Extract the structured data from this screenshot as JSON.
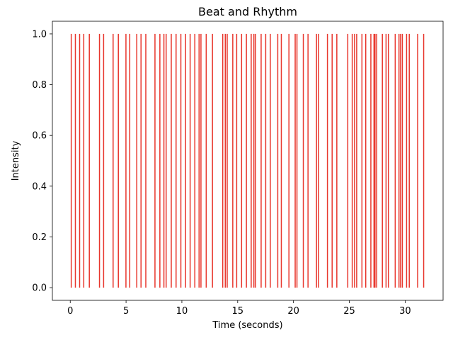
{
  "chart_data": {
    "type": "event-lines",
    "title": "Beat and Rhythm",
    "xlabel": "Time (seconds)",
    "ylabel": "Intensity",
    "xlim": [
      -1.6,
      33.4
    ],
    "ylim": [
      -0.05,
      1.05
    ],
    "xticks": [
      0,
      5,
      10,
      15,
      20,
      25,
      30
    ],
    "yticks": [
      0.0,
      0.2,
      0.4,
      0.6,
      0.8,
      1.0
    ],
    "xtick_labels": [
      "0",
      "5",
      "10",
      "15",
      "20",
      "25",
      "30"
    ],
    "ytick_labels": [
      "0.0",
      "0.2",
      "0.4",
      "0.6",
      "0.8",
      "1.0"
    ],
    "line_bottom": 0.0,
    "line_top": 1.0,
    "color": "#e8352b",
    "grid": false,
    "x": [
      0.09,
      0.46,
      0.84,
      1.21,
      1.71,
      2.62,
      2.99,
      3.84,
      4.31,
      4.99,
      5.33,
      5.96,
      6.34,
      6.77,
      7.59,
      8.03,
      8.39,
      8.59,
      9.05,
      9.48,
      9.91,
      10.33,
      10.74,
      11.16,
      11.54,
      11.71,
      12.18,
      12.74,
      13.66,
      13.89,
      14.06,
      14.56,
      14.91,
      15.35,
      15.78,
      16.21,
      16.45,
      16.59,
      17.1,
      17.51,
      17.92,
      18.59,
      18.91,
      19.59,
      20.15,
      20.31,
      20.88,
      21.3,
      22.06,
      22.23,
      23.04,
      23.46,
      23.88,
      24.86,
      25.26,
      25.47,
      25.66,
      26.13,
      26.47,
      26.93,
      27.21,
      27.3,
      27.45,
      27.96,
      28.29,
      28.5,
      29.11,
      29.45,
      29.59,
      29.75,
      30.13,
      30.37,
      31.12,
      31.66
    ]
  }
}
